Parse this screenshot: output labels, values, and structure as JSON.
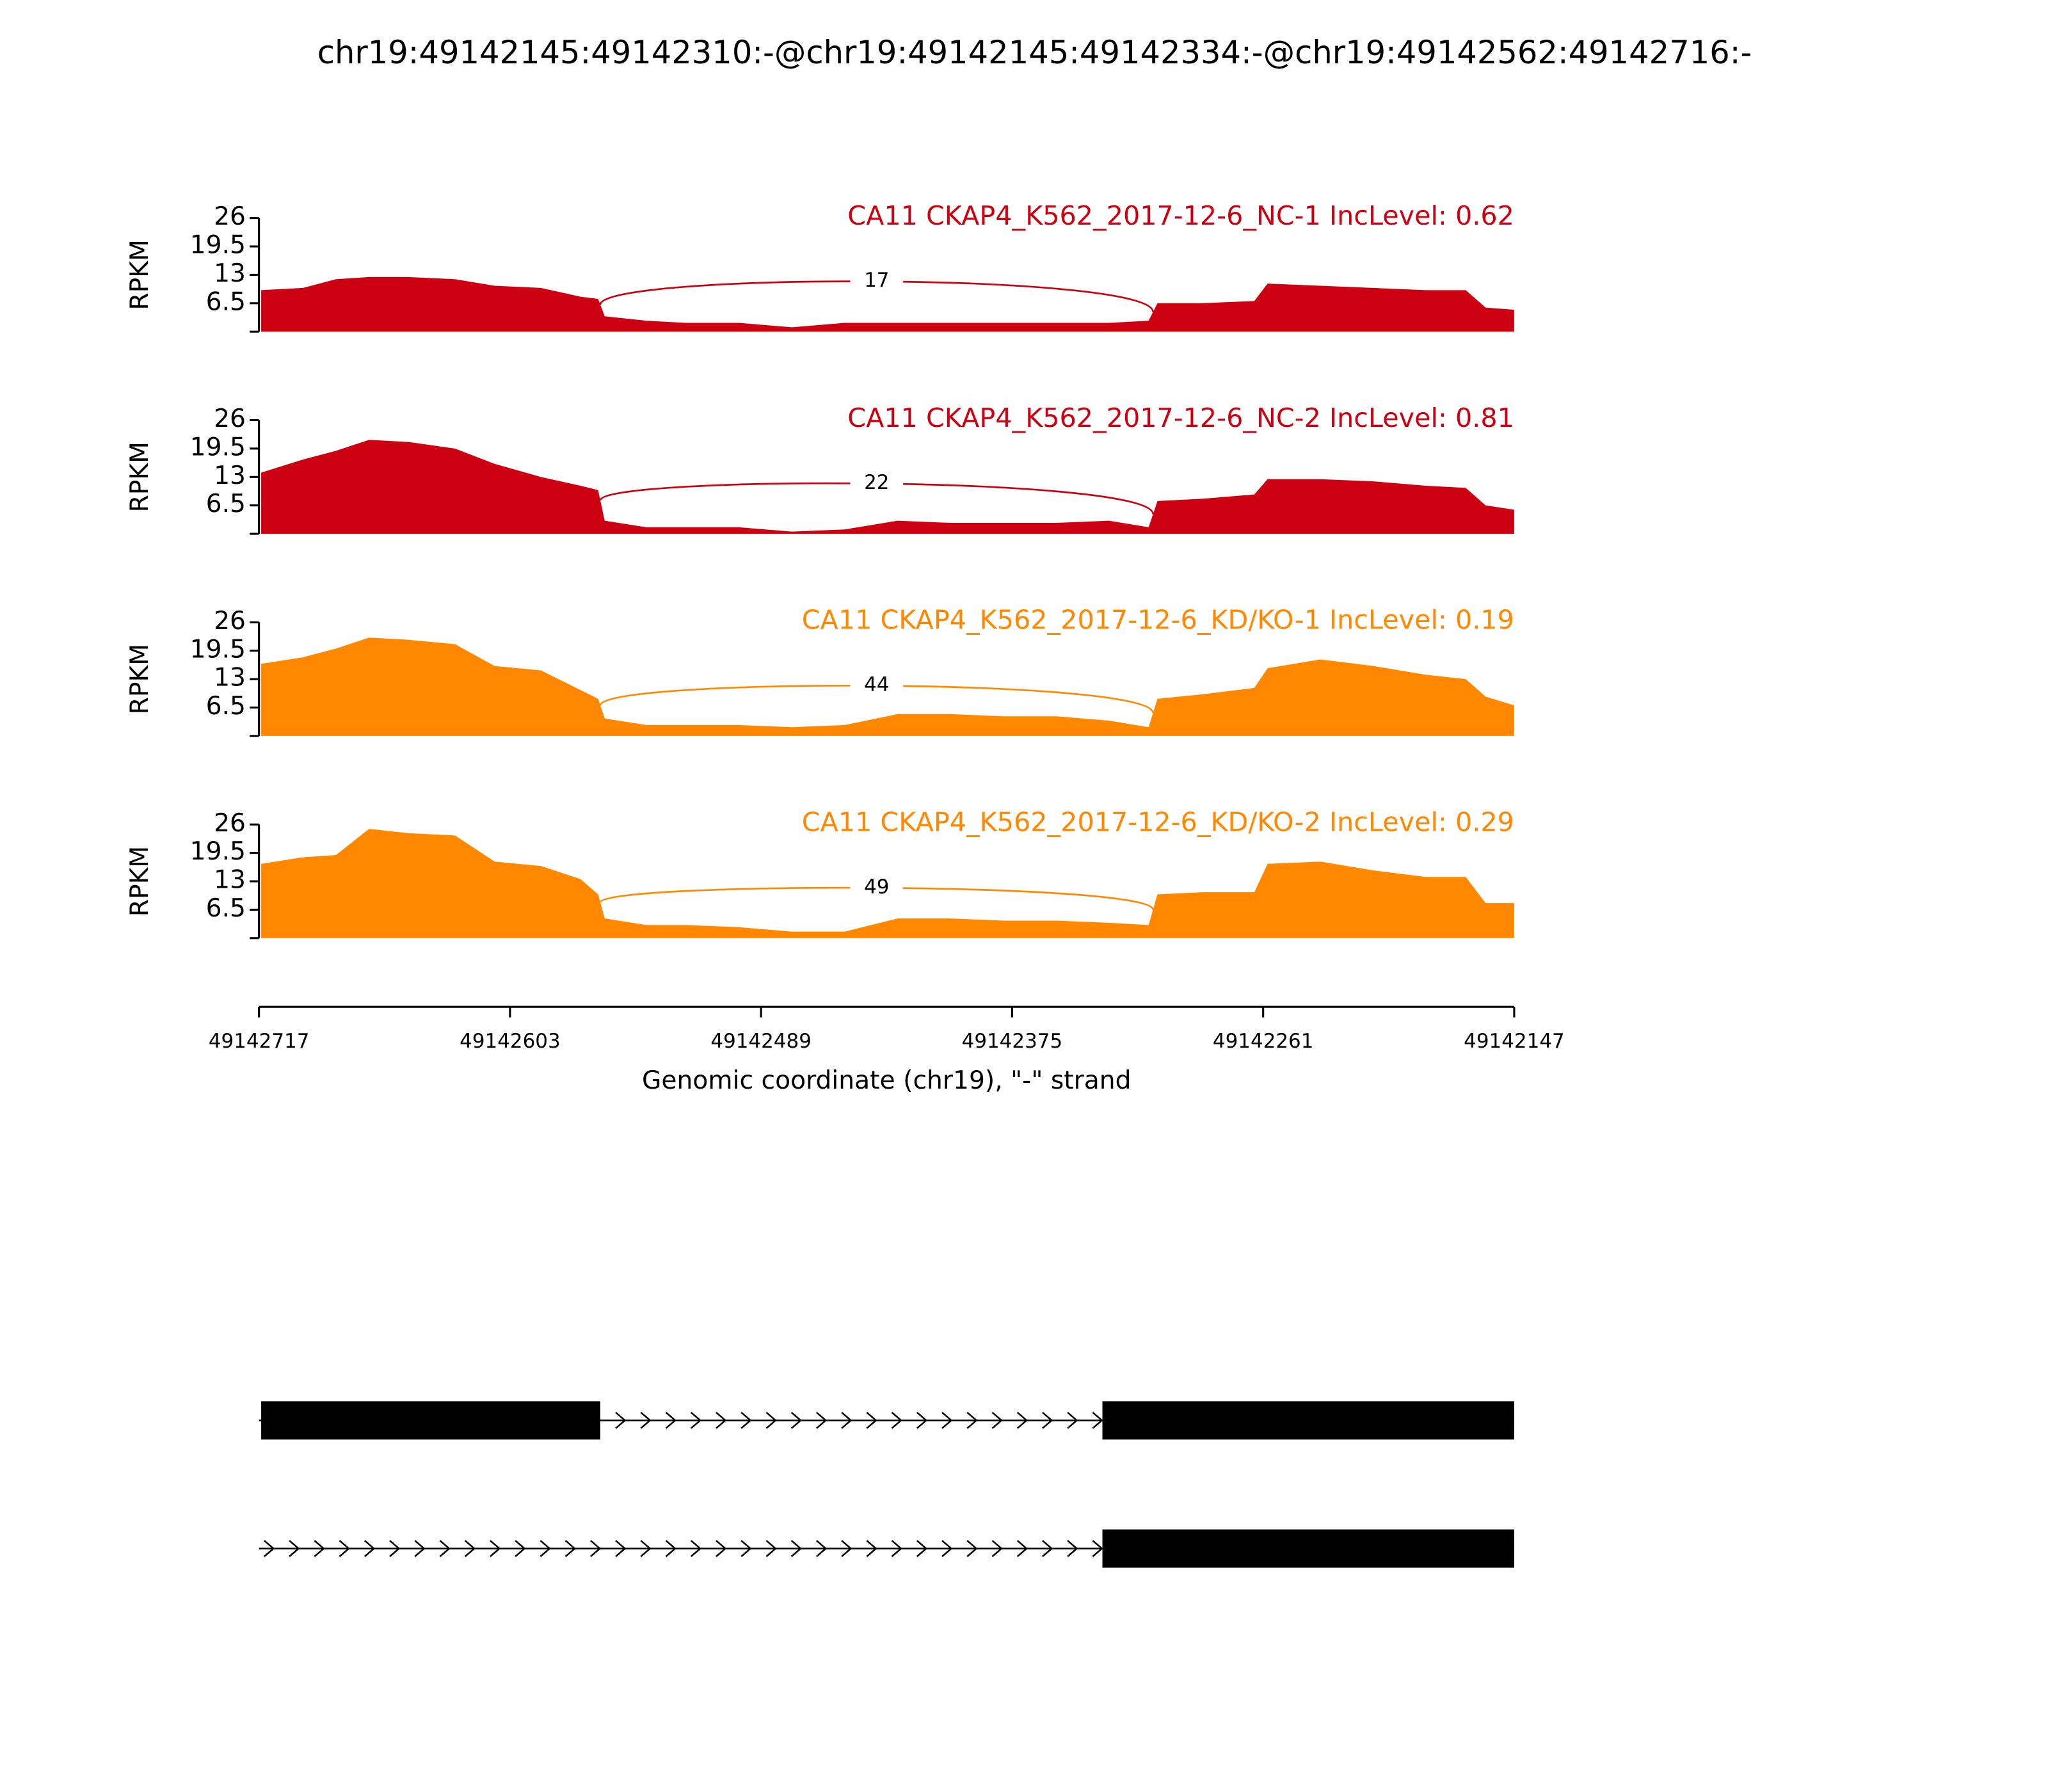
{
  "title": "chr19:49142145:49142310:-@chr19:49142145:49142334:-@chr19:49142562:49142716:-",
  "chart_data": [
    {
      "type": "area",
      "title": "CA11 CKAP4_K562_2017-12-6_NC-1 IncLevel: 0.62",
      "ylabel": "RPKM",
      "color": "#cc0011",
      "ylim": [
        0,
        26
      ],
      "yticks": [
        6.5,
        13,
        19.5,
        26
      ],
      "xlim": [
        49142717,
        49142147
      ],
      "x": [
        49142716,
        49142697,
        49142682,
        49142667,
        49142649,
        49142628,
        49142610,
        49142589,
        49142571,
        49142563,
        49142560,
        49142541,
        49142523,
        49142499,
        49142475,
        49142451,
        49142427,
        49142403,
        49142379,
        49142355,
        49142331,
        49142313,
        49142309,
        49142289,
        49142265,
        49142259,
        49142235,
        49142211,
        49142187,
        49142169,
        49142160,
        49142147
      ],
      "values": [
        9.5,
        10,
        12,
        12.5,
        12.5,
        12,
        10.5,
        10,
        8,
        7.5,
        3.5,
        2.5,
        2,
        2,
        1,
        2,
        2,
        2,
        2,
        2,
        2,
        2.5,
        6.5,
        6.5,
        7,
        11,
        10.5,
        10,
        9.5,
        9.5,
        5.5,
        5
      ],
      "junctions": [
        {
          "start": 49142562,
          "end": 49142311,
          "count": 17
        }
      ]
    },
    {
      "type": "area",
      "title": "CA11 CKAP4_K562_2017-12-6_NC-2 IncLevel: 0.81",
      "ylabel": "RPKM",
      "color": "#cc0011",
      "ylim": [
        0,
        26
      ],
      "yticks": [
        6.5,
        13,
        19.5,
        26
      ],
      "xlim": [
        49142717,
        49142147
      ],
      "x": [
        49142716,
        49142697,
        49142682,
        49142667,
        49142649,
        49142628,
        49142610,
        49142589,
        49142571,
        49142563,
        49142560,
        49142541,
        49142523,
        49142499,
        49142475,
        49142451,
        49142427,
        49142403,
        49142379,
        49142355,
        49142331,
        49142313,
        49142309,
        49142289,
        49142265,
        49142259,
        49142235,
        49142211,
        49142187,
        49142169,
        49142160,
        49142147
      ],
      "values": [
        14,
        17,
        19,
        21.5,
        21,
        19.5,
        16,
        13,
        11,
        10,
        3,
        1.5,
        1.5,
        1.5,
        0.5,
        1,
        3,
        2.5,
        2.5,
        2.5,
        3,
        1.5,
        7.5,
        8,
        9,
        12.5,
        12.5,
        12,
        11,
        10.5,
        6.5,
        5.5
      ],
      "junctions": [
        {
          "start": 49142562,
          "end": 49142311,
          "count": 22
        }
      ]
    },
    {
      "type": "area",
      "title": "CA11 CKAP4_K562_2017-12-6_KD/KO-1 IncLevel: 0.19",
      "ylabel": "RPKM",
      "color": "#ff8800",
      "ylim": [
        0,
        26
      ],
      "yticks": [
        6.5,
        13,
        19.5,
        26
      ],
      "xlim": [
        49142717,
        49142147
      ],
      "x": [
        49142716,
        49142697,
        49142682,
        49142667,
        49142649,
        49142628,
        49142610,
        49142589,
        49142571,
        49142563,
        49142560,
        49142541,
        49142523,
        49142499,
        49142475,
        49142451,
        49142427,
        49142403,
        49142379,
        49142355,
        49142331,
        49142313,
        49142309,
        49142289,
        49142265,
        49142259,
        49142235,
        49142211,
        49142187,
        49142169,
        49142160,
        49142147
      ],
      "values": [
        16.5,
        18,
        20,
        22.5,
        22,
        21,
        16,
        15,
        10.5,
        8.5,
        4,
        2.5,
        2.5,
        2.5,
        2,
        2.5,
        5,
        5,
        4.5,
        4.5,
        3.5,
        2,
        8.5,
        9.5,
        11,
        15.5,
        17.5,
        16,
        14,
        13,
        9,
        7
      ],
      "junctions": [
        {
          "start": 49142562,
          "end": 49142311,
          "count": 44
        }
      ]
    },
    {
      "type": "area",
      "title": "CA11 CKAP4_K562_2017-12-6_KD/KO-2 IncLevel: 0.29",
      "ylabel": "RPKM",
      "color": "#ff8800",
      "ylim": [
        0,
        26
      ],
      "yticks": [
        6.5,
        13,
        19.5,
        26
      ],
      "xlim": [
        49142717,
        49142147
      ],
      "xticks": [
        49142717,
        49142603,
        49142489,
        49142375,
        49142261,
        49142147
      ],
      "xlabel": "Genomic coordinate (chr19), \"-\" strand",
      "x": [
        49142716,
        49142697,
        49142682,
        49142667,
        49142649,
        49142628,
        49142610,
        49142589,
        49142571,
        49142563,
        49142560,
        49142541,
        49142523,
        49142499,
        49142475,
        49142451,
        49142427,
        49142403,
        49142379,
        49142355,
        49142331,
        49142313,
        49142309,
        49142289,
        49142265,
        49142259,
        49142235,
        49142211,
        49142187,
        49142169,
        49142160,
        49142147
      ],
      "values": [
        17,
        18.5,
        19,
        25,
        24,
        23.5,
        17.5,
        16.5,
        13.5,
        10,
        4.5,
        3,
        3,
        2.5,
        1.5,
        1.5,
        4.5,
        4.5,
        4,
        4,
        3.5,
        3,
        10,
        10.5,
        10.5,
        17,
        17.5,
        15.5,
        14,
        14,
        8,
        8
      ],
      "junctions": [
        {
          "start": 49142562,
          "end": 49142311,
          "count": 49
        }
      ]
    }
  ],
  "gene_models": [
    {
      "exons": [
        [
          49142716,
          49142562
        ],
        [
          49142334,
          49142147
        ]
      ]
    },
    {
      "exons": [
        [
          49142334,
          49142147
        ]
      ]
    }
  ]
}
